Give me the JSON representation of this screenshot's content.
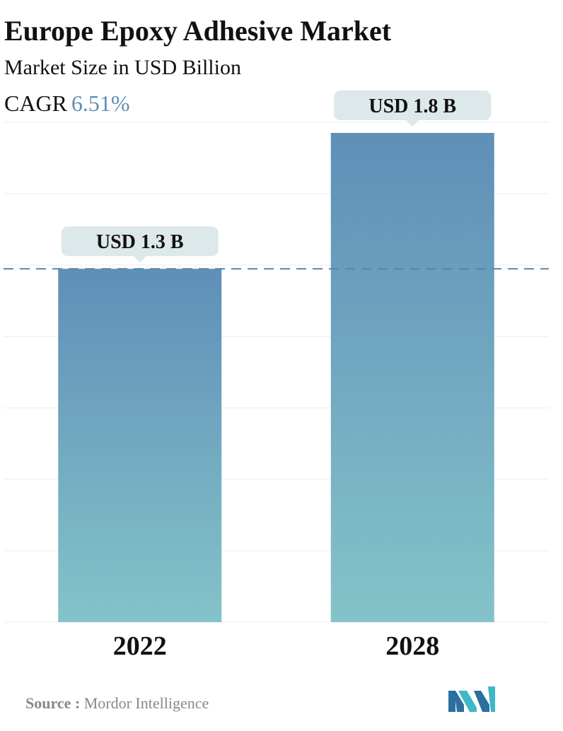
{
  "header": {
    "title": "Europe Epoxy Adhesive Market",
    "subtitle": "Market Size in USD Billion",
    "cagr_label": "CAGR",
    "cagr_value": "6.51%"
  },
  "chart_data": {
    "type": "bar",
    "categories": [
      "2022",
      "2028"
    ],
    "values": [
      1.3,
      1.8
    ],
    "data_labels": [
      "USD 1.3 B",
      "USD 1.8 B"
    ],
    "ylim": [
      0,
      1.8
    ],
    "grid": true,
    "reference_line": 1.3,
    "colors": {
      "bar_top": "#5f8fb8",
      "bar_bottom": "#84c3c9",
      "label_bg": "#dde8ea",
      "reference_line": "#5a84a8",
      "grid": "#ececec"
    }
  },
  "footer": {
    "source_label": "Source :",
    "source_value": "Mordor Intelligence",
    "logo_icon": "mordor-intelligence-logo"
  },
  "colors": {
    "accent": "#5f8fb5",
    "logo_dark": "#2b6f9e",
    "logo_light": "#3fb7c7"
  }
}
